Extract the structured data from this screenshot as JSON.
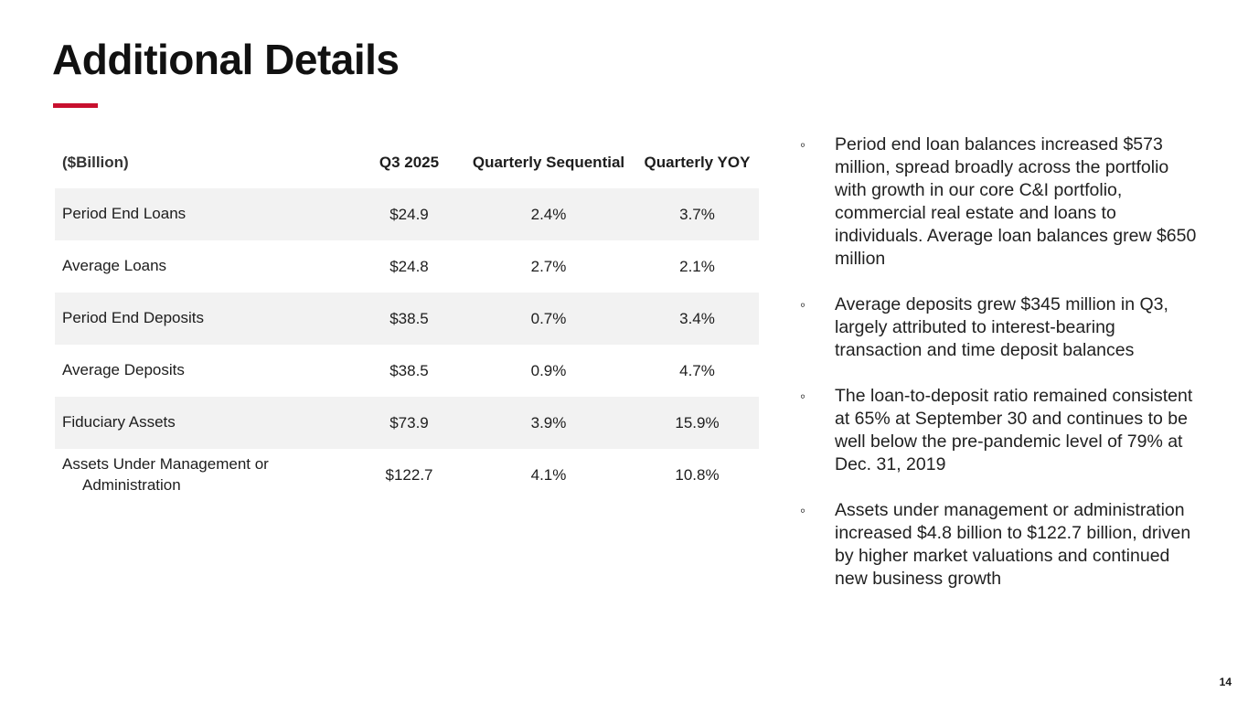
{
  "slide": {
    "title": "Additional Details",
    "accent_color": "#C8102E",
    "bullet_char": "◦",
    "page_number": "14"
  },
  "table": {
    "unit_label": "($Billion)",
    "columns": [
      "Q3 2025",
      "Quarterly Sequential",
      "Quarterly YOY"
    ],
    "rows": [
      {
        "label": "Period End Loans",
        "q3_2025": "$24.9",
        "quarterly_sequential": "2.4%",
        "quarterly_yoy": "3.7%"
      },
      {
        "label": "Average Loans",
        "q3_2025": "$24.8",
        "quarterly_sequential": "2.7%",
        "quarterly_yoy": "2.1%"
      },
      {
        "label": "Period End Deposits",
        "q3_2025": "$38.5",
        "quarterly_sequential": "0.7%",
        "quarterly_yoy": "3.4%"
      },
      {
        "label": "Average Deposits",
        "q3_2025": "$38.5",
        "quarterly_sequential": "0.9%",
        "quarterly_yoy": "4.7%"
      },
      {
        "label": "Fiduciary Assets",
        "q3_2025": "$73.9",
        "quarterly_sequential": "3.9%",
        "quarterly_yoy": "15.9%"
      },
      {
        "label": "Assets Under Management or Administration",
        "q3_2025": "$122.7",
        "quarterly_sequential": "4.1%",
        "quarterly_yoy": "10.8%"
      }
    ]
  },
  "bullets": [
    "Period end loan balances increased $573 million, spread broadly across the portfolio with growth in our core C&I portfolio, commercial real estate and loans to individuals. Average loan balances grew $650 million",
    "Average deposits grew $345 million in Q3, largely attributed to interest-bearing transaction and time deposit balances",
    "The loan-to-deposit ratio remained consistent at 65% at September 30 and continues to be well below the pre-pandemic level of 79% at Dec. 31, 2019",
    "Assets under management or administration increased $4.8 billion to $122.7 billion, driven by higher market valuations and continued new business growth"
  ]
}
